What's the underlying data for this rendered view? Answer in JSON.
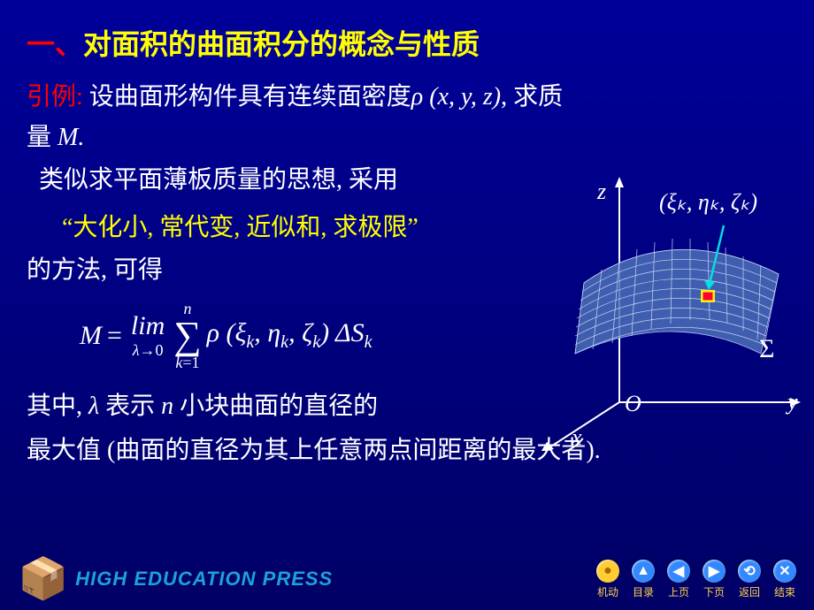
{
  "title": {
    "number_text": "一、",
    "title_text": "对面积的曲面积分的概念与性质"
  },
  "intro": {
    "lead": "引例:",
    "line1_a": "设曲面形构件具有连续面密度",
    "rho_expr": "ρ (x, y, z)",
    "line1_b": ", 求质",
    "line2": "量 ",
    "mass_sym": "M.",
    "line3": "类似求平面薄板质量的思想, 采用",
    "quote": "“大化小, 常代变, 近似和, 求极限”",
    "line4": "的方法, 可得"
  },
  "formula": {
    "lhs": "M",
    "equals": "=",
    "lim": "lim",
    "lim_cond_a": "λ",
    "lim_cond_b": "→0",
    "sum_top": "n",
    "sum_sym": "∑",
    "sum_bot_a": "k",
    "sum_bot_b": "=1",
    "body": "ρ (ξ",
    "sub_k1": "k",
    "body2": ", η",
    "sub_k2": "k",
    "body3": ", ζ",
    "sub_k3": "k",
    "body4": ") ΔS",
    "sub_k4": "k"
  },
  "tail": {
    "line1_a": "其中, ",
    "lambda": "λ",
    "line1_b": " 表示 ",
    "n_sym": "n",
    "line1_c": " 小块曲面的直径的",
    "line2": "最大值 (曲面的直径为其上任意两点间距离的最大者)."
  },
  "diagram": {
    "axis_z": "z",
    "axis_y": "y",
    "axis_x": "x",
    "origin": "O",
    "sigma": "Σ",
    "point_label": "(ξₖ, ηₖ, ζₖ)",
    "colors": {
      "background": "#000080",
      "axis_color": "#ffffff",
      "surface_face": "#3366cc",
      "surface_line": "#aabbee",
      "surface_hl": "#ffff00",
      "patch": "#ff0033",
      "arrow": "#00e0e0"
    }
  },
  "footer": {
    "publisher": "HIGH EDUCATION PRESS",
    "buttons": [
      {
        "label": "机动",
        "glyph": "●",
        "bg": "#ffcc33",
        "fg": "#aa6600"
      },
      {
        "label": "目录",
        "glyph": "▲",
        "bg": "#3388ff",
        "fg": "#ffffff"
      },
      {
        "label": "上页",
        "glyph": "◀",
        "bg": "#3388ff",
        "fg": "#ffffff"
      },
      {
        "label": "下页",
        "glyph": "▶",
        "bg": "#3388ff",
        "fg": "#ffffff"
      },
      {
        "label": "返回",
        "glyph": "⟲",
        "bg": "#3388ff",
        "fg": "#ffffff"
      },
      {
        "label": "结束",
        "glyph": "✕",
        "bg": "#3388ff",
        "fg": "#ffffff"
      }
    ]
  }
}
